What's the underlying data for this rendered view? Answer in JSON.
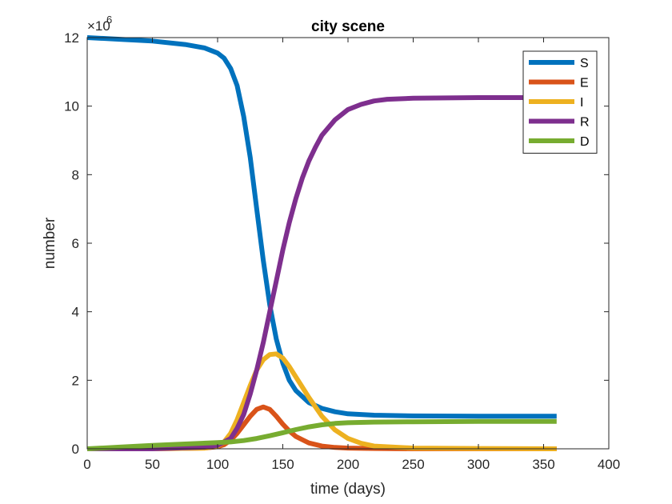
{
  "chart_data": {
    "type": "line",
    "title": "city scene",
    "xlabel": "time (days)",
    "ylabel": "number",
    "y_multiplier": "×10",
    "y_exponent": "6",
    "xlim": [
      0,
      400
    ],
    "ylim": [
      0,
      12
    ],
    "x_ticks": [
      0,
      50,
      100,
      150,
      200,
      250,
      300,
      350,
      400
    ],
    "y_ticks": [
      0,
      2,
      4,
      6,
      8,
      10,
      12
    ],
    "grid": false,
    "legend_position": "top-right",
    "series": [
      {
        "name": "S",
        "color": "#0072BD",
        "x": [
          0,
          25,
          50,
          75,
          90,
          100,
          105,
          110,
          115,
          120,
          125,
          130,
          135,
          140,
          145,
          150,
          155,
          160,
          170,
          180,
          190,
          200,
          220,
          250,
          300,
          360
        ],
        "y": [
          12.0,
          11.95,
          11.9,
          11.8,
          11.7,
          11.55,
          11.4,
          11.1,
          10.6,
          9.7,
          8.5,
          7.0,
          5.5,
          4.2,
          3.2,
          2.5,
          2.0,
          1.7,
          1.35,
          1.18,
          1.08,
          1.02,
          0.98,
          0.96,
          0.95,
          0.95
        ]
      },
      {
        "name": "E",
        "color": "#D95319",
        "x": [
          0,
          50,
          90,
          100,
          105,
          110,
          115,
          120,
          125,
          130,
          135,
          140,
          145,
          150,
          155,
          160,
          170,
          180,
          190,
          200,
          220,
          250,
          300,
          360
        ],
        "y": [
          0.0,
          0.0,
          0.02,
          0.06,
          0.12,
          0.25,
          0.45,
          0.7,
          0.95,
          1.15,
          1.22,
          1.15,
          0.95,
          0.72,
          0.52,
          0.36,
          0.17,
          0.08,
          0.04,
          0.02,
          0.01,
          0.0,
          0.0,
          0.0
        ]
      },
      {
        "name": "I",
        "color": "#EDB120",
        "x": [
          0,
          50,
          90,
          100,
          105,
          110,
          115,
          120,
          125,
          130,
          135,
          140,
          145,
          150,
          155,
          160,
          165,
          170,
          180,
          190,
          200,
          210,
          220,
          250,
          300,
          360
        ],
        "y": [
          0.0,
          0.0,
          0.02,
          0.08,
          0.2,
          0.45,
          0.85,
          1.35,
          1.85,
          2.3,
          2.6,
          2.75,
          2.77,
          2.65,
          2.4,
          2.1,
          1.8,
          1.5,
          0.95,
          0.55,
          0.3,
          0.16,
          0.08,
          0.02,
          0.01,
          0.0
        ]
      },
      {
        "name": "R",
        "color": "#7E2F8E",
        "x": [
          0,
          50,
          90,
          100,
          110,
          115,
          120,
          125,
          130,
          135,
          140,
          145,
          150,
          155,
          160,
          165,
          170,
          175,
          180,
          190,
          200,
          210,
          220,
          230,
          250,
          300,
          360
        ],
        "y": [
          0.0,
          0.0,
          0.05,
          0.1,
          0.3,
          0.6,
          1.0,
          1.6,
          2.3,
          3.1,
          4.0,
          4.9,
          5.8,
          6.6,
          7.3,
          7.9,
          8.4,
          8.8,
          9.15,
          9.6,
          9.9,
          10.05,
          10.15,
          10.2,
          10.23,
          10.25,
          10.25
        ]
      },
      {
        "name": "D",
        "color": "#77AC30",
        "x": [
          0,
          25,
          50,
          75,
          100,
          110,
          120,
          130,
          140,
          150,
          160,
          170,
          180,
          190,
          200,
          220,
          250,
          300,
          360
        ],
        "y": [
          0.0,
          0.05,
          0.1,
          0.14,
          0.18,
          0.2,
          0.24,
          0.3,
          0.38,
          0.47,
          0.56,
          0.64,
          0.7,
          0.74,
          0.76,
          0.78,
          0.79,
          0.8,
          0.8
        ]
      }
    ]
  }
}
